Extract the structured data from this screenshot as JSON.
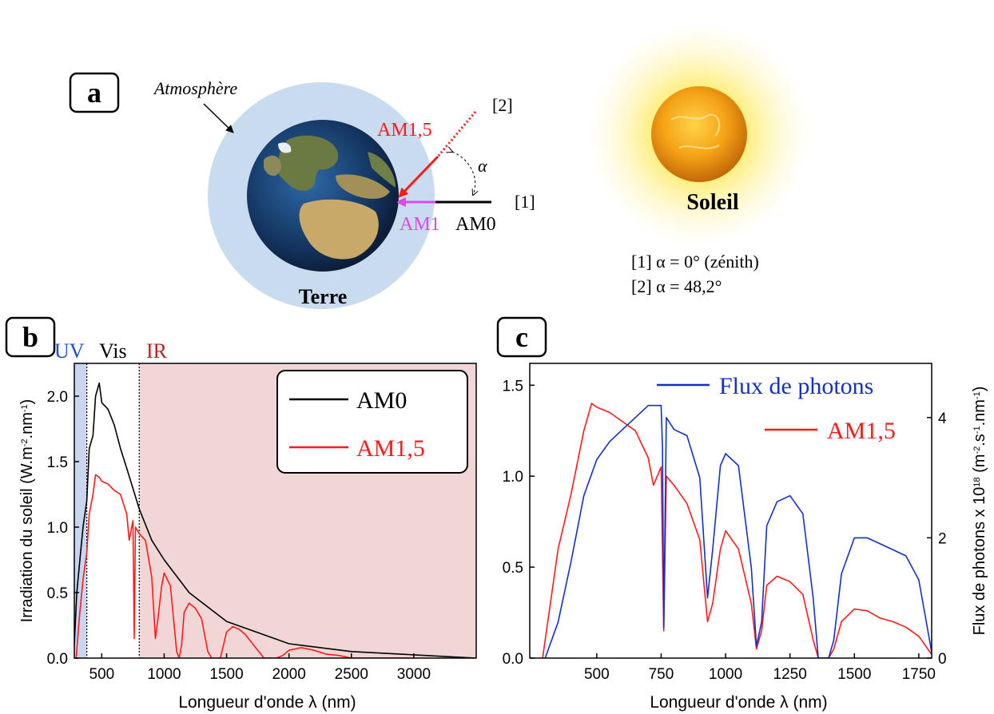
{
  "colors": {
    "am0": "#000000",
    "am15": "#ff1a1a",
    "flux": "#1530c8",
    "am1": "#d94ae6",
    "atmosphere": "#c9dcef",
    "uv_region": "#c8d7ef",
    "ir_region": "#f1d6d6",
    "uv_text": "#1f4fd0",
    "ir_text": "#c0201e"
  },
  "panel_a": {
    "label": "a",
    "atmosphere_label": "Atmosphère",
    "earth_label": "Terre",
    "sun_label": "Soleil",
    "ray_1": "[1]",
    "ray_2": "[2]",
    "angle_symbol": "α",
    "am15_label": "AM1,5",
    "am1_label": "AM1",
    "am0_label": "AM0",
    "legend_line_1": "[1] α = 0° (zénith)",
    "legend_line_2": "[2] α = 48,2°",
    "icons": [
      "earth-globe-icon",
      "sun-icon"
    ]
  },
  "chart_data": [
    {
      "panel": "b",
      "type": "line",
      "xlabel": "Longueur d'onde λ (nm)",
      "ylabel": "Irradiation du soleil (W.m-2.nm-1)",
      "xlim": [
        280,
        3500
      ],
      "ylim": [
        0,
        2.25
      ],
      "xticks": [
        "500",
        "1000",
        "1500",
        "2000",
        "2500",
        "3000"
      ],
      "yticks": [
        "0.0",
        "0.5",
        "1.0",
        "1.5",
        "2.0"
      ],
      "regions": [
        {
          "name": "UV",
          "from": 280,
          "to": 380
        },
        {
          "name": "Vis",
          "from": 380,
          "to": 800
        },
        {
          "name": "IR",
          "from": 800,
          "to": 3500
        }
      ],
      "legend_position": "top-right",
      "series": [
        {
          "name": "AM0",
          "x": [
            280,
            300,
            320,
            350,
            380,
            400,
            430,
            450,
            480,
            500,
            550,
            600,
            650,
            700,
            800,
            900,
            1000,
            1200,
            1500,
            2000,
            2500,
            3000,
            3500
          ],
          "y": [
            0.1,
            0.5,
            0.7,
            1.0,
            1.2,
            1.6,
            1.7,
            2.0,
            2.1,
            1.95,
            1.9,
            1.78,
            1.6,
            1.45,
            1.14,
            0.9,
            0.75,
            0.5,
            0.28,
            0.11,
            0.05,
            0.025,
            0.0
          ]
        },
        {
          "name": "AM1,5",
          "x": [
            295,
            320,
            350,
            380,
            400,
            430,
            450,
            480,
            500,
            550,
            600,
            650,
            700,
            720,
            750,
            760,
            770,
            800,
            850,
            900,
            930,
            950,
            980,
            1000,
            1050,
            1100,
            1120,
            1140,
            1160,
            1200,
            1250,
            1300,
            1350,
            1380,
            1400,
            1450,
            1500,
            1550,
            1600,
            1650,
            1700,
            1750,
            1800,
            1850,
            1900,
            1950,
            2000,
            2100,
            2200,
            2300,
            2400,
            2450,
            2500,
            2600,
            3000
          ],
          "y": [
            0.0,
            0.3,
            0.6,
            0.8,
            1.1,
            1.25,
            1.4,
            1.38,
            1.35,
            1.33,
            1.28,
            1.25,
            1.1,
            0.9,
            1.05,
            0.15,
            1.0,
            0.95,
            0.9,
            0.62,
            0.15,
            0.3,
            0.55,
            0.65,
            0.55,
            0.05,
            0.0,
            0.1,
            0.35,
            0.42,
            0.38,
            0.3,
            0.05,
            0.0,
            0.0,
            0.0,
            0.2,
            0.24,
            0.22,
            0.18,
            0.12,
            0.06,
            0.0,
            0.0,
            0.0,
            0.02,
            0.06,
            0.08,
            0.06,
            0.03,
            0.02,
            0.01,
            0.0,
            0.0,
            0.0
          ]
        }
      ]
    },
    {
      "panel": "c",
      "type": "line",
      "xlabel": "Longueur d'onde λ (nm)",
      "ylabel": "",
      "ylabel_right": "Flux de photons x 1018 (m-2.s-1.nm-1)",
      "xlim": [
        240,
        1800
      ],
      "ylim": [
        0,
        1.62
      ],
      "ylim_right": [
        0,
        4.9
      ],
      "xticks": [
        "500",
        "750",
        "1000",
        "1250",
        "1500",
        "1750"
      ],
      "yticks": [
        "0.0",
        "0.5",
        "1.0",
        "1.5"
      ],
      "yticks_right": [
        "0",
        "2",
        "4"
      ],
      "legend_position": "top-right",
      "series": [
        {
          "name": "Flux de photons",
          "axis": "right",
          "x": [
            300,
            350,
            400,
            450,
            500,
            550,
            600,
            650,
            700,
            750,
            755,
            760,
            770,
            800,
            850,
            900,
            930,
            950,
            980,
            1000,
            1050,
            1100,
            1120,
            1140,
            1160,
            1200,
            1250,
            1300,
            1340,
            1360,
            1400,
            1420,
            1450,
            1500,
            1550,
            1600,
            1650,
            1700,
            1750,
            1800
          ],
          "y": [
            0.0,
            0.6,
            1.6,
            2.7,
            3.3,
            3.6,
            3.8,
            4.0,
            4.2,
            4.2,
            3.5,
            0.5,
            4.0,
            3.8,
            3.7,
            3.0,
            1.0,
            1.8,
            3.2,
            3.4,
            3.2,
            1.5,
            0.2,
            0.6,
            2.2,
            2.6,
            2.7,
            2.4,
            1.0,
            0.0,
            0.0,
            0.3,
            1.4,
            2.0,
            2.0,
            1.9,
            1.8,
            1.7,
            1.3,
            0.1
          ]
        },
        {
          "name": "AM1,5",
          "axis": "left",
          "x": [
            290,
            320,
            350,
            400,
            450,
            480,
            500,
            550,
            600,
            650,
            700,
            720,
            750,
            760,
            770,
            800,
            850,
            900,
            930,
            950,
            980,
            1000,
            1050,
            1100,
            1120,
            1140,
            1160,
            1200,
            1250,
            1300,
            1340,
            1360,
            1400,
            1420,
            1450,
            1500,
            1550,
            1600,
            1650,
            1700,
            1750,
            1800
          ],
          "y": [
            0.0,
            0.3,
            0.6,
            0.9,
            1.25,
            1.4,
            1.38,
            1.35,
            1.3,
            1.25,
            1.1,
            0.95,
            1.05,
            0.15,
            1.0,
            0.95,
            0.85,
            0.65,
            0.2,
            0.3,
            0.6,
            0.7,
            0.6,
            0.3,
            0.05,
            0.15,
            0.4,
            0.45,
            0.42,
            0.35,
            0.1,
            0.0,
            0.0,
            0.05,
            0.2,
            0.27,
            0.26,
            0.22,
            0.2,
            0.17,
            0.12,
            0.02
          ]
        }
      ]
    }
  ]
}
